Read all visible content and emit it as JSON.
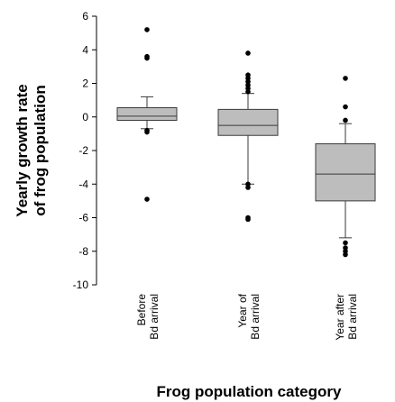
{
  "chart_data": {
    "type": "box",
    "xlabel": "Frog population category",
    "ylabel_lines": [
      "Yearly growth rate",
      "of frog population"
    ],
    "ylim": [
      -10,
      6
    ],
    "yticks": [
      6,
      4,
      2,
      0,
      -2,
      -4,
      -6,
      -8,
      -10
    ],
    "grid": false,
    "categories": [
      {
        "lines": [
          "Before",
          "Bd arrival"
        ]
      },
      {
        "lines": [
          "Year of",
          "Bd arrival"
        ]
      },
      {
        "lines": [
          "Year after",
          "Bd arrival"
        ]
      }
    ],
    "boxes": [
      {
        "whisker_low": -0.7,
        "q1": -0.2,
        "median": 0.05,
        "q3": 0.55,
        "whisker_high": 1.2,
        "outliers": [
          5.2,
          3.6,
          3.5,
          -0.8,
          -0.9,
          -4.9
        ]
      },
      {
        "whisker_low": -4.0,
        "q1": -1.1,
        "median": -0.5,
        "q3": 0.45,
        "whisker_high": 1.4,
        "outliers": [
          3.8,
          2.5,
          2.3,
          2.1,
          1.9,
          1.7,
          1.5,
          -4.0,
          -4.2,
          -6.0,
          -6.1
        ]
      },
      {
        "whisker_low": -7.2,
        "q1": -5.0,
        "median": -3.4,
        "q3": -1.6,
        "whisker_high": -0.4,
        "outliers": [
          2.3,
          0.6,
          -0.2,
          -7.5,
          -7.8,
          -8.0,
          -8.2
        ]
      }
    ],
    "box_color": "#bdbdbd",
    "line_color": "#3a3a3a",
    "point_color": "#000000"
  }
}
